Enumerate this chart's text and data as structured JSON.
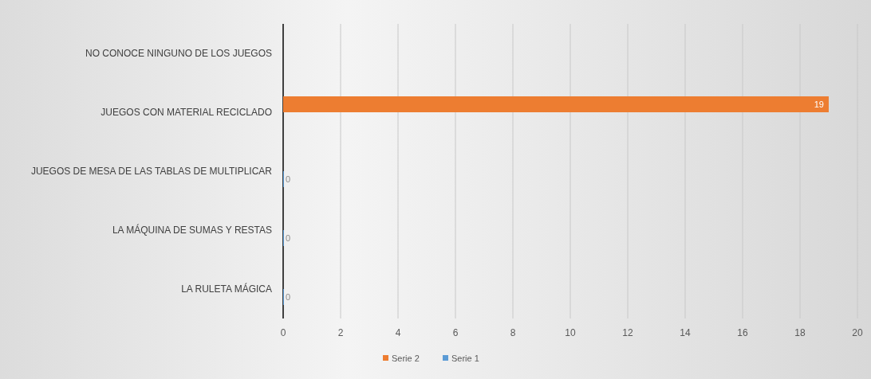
{
  "chart_data": {
    "type": "bar",
    "orientation": "horizontal",
    "categories": [
      "NO CONOCE NINGUNO DE LOS JUEGOS",
      "JUEGOS CON MATERIAL RECICLADO",
      "JUEGOS DE MESA DE LAS TABLAS DE MULTIPLICAR",
      "LA MÁQUINA DE SUMAS Y RESTAS",
      "LA RULETA MÁGICA"
    ],
    "series": [
      {
        "name": "Serie 2",
        "color": "#ed7d31",
        "values": [
          null,
          19,
          null,
          null,
          null
        ]
      },
      {
        "name": "Serie 1",
        "color": "#5b9bd5",
        "values": [
          null,
          null,
          0,
          0,
          0
        ]
      }
    ],
    "xlim": [
      0,
      20
    ],
    "xticks": [
      0,
      2,
      4,
      6,
      8,
      10,
      12,
      14,
      16,
      18,
      20
    ],
    "grid": "x",
    "legend": "bottom",
    "data_labels": true
  }
}
